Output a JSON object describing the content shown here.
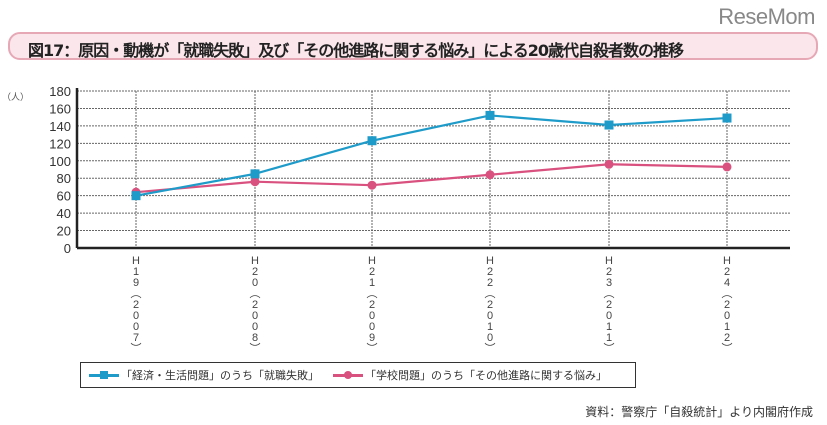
{
  "logo": "ReseMom",
  "title": "図17：原因・動機が「就職失敗」及び「その他進路に関する悩み」による20歳代自殺者数の推移",
  "source": "資料：警察庁「自殺統計」より内閣府作成",
  "chart_data": {
    "type": "line",
    "title": "図17：原因・動機が「就職失敗」及び「その他進路に関する悩み」による20歳代自殺者数の推移",
    "ylabel": "（人）",
    "ylim": [
      0,
      180
    ],
    "yticks": [
      0,
      20,
      40,
      60,
      80,
      100,
      120,
      140,
      160,
      180
    ],
    "grid": true,
    "categories": [
      "H19(2007)",
      "H20(2008)",
      "H21(2009)",
      "H22(2010)",
      "H23(2011)",
      "H24(2012)"
    ],
    "legend_position": "bottom",
    "series": [
      {
        "name": "「経済・生活問題」のうち「就職失敗」",
        "color": "#1e9bc9",
        "marker": "square",
        "values": [
          60,
          85,
          123,
          152,
          141,
          149
        ]
      },
      {
        "name": "「学校問題」のうち「その他進路に関する悩み」",
        "color": "#d9517f",
        "marker": "circle",
        "values": [
          64,
          76,
          72,
          84,
          96,
          93
        ]
      }
    ]
  }
}
